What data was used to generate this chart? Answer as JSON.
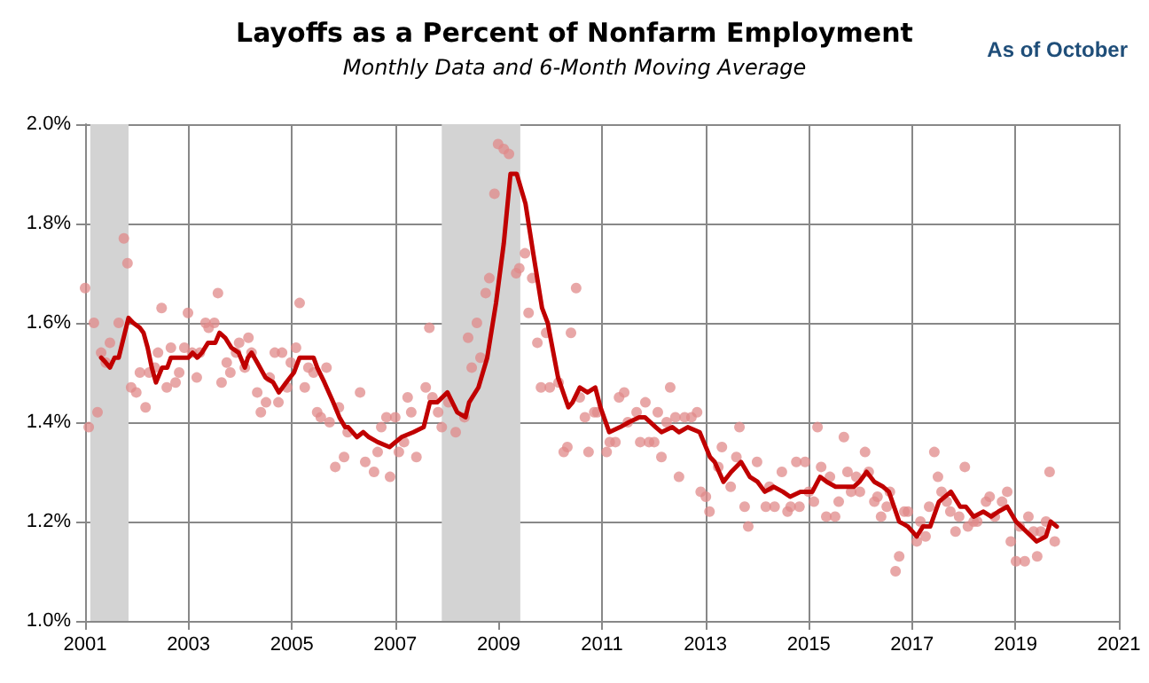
{
  "chart_data": {
    "type": "scatter",
    "title": "Layoffs as a Percent of Nonfarm Employment",
    "subtitle": "Monthly Data and 6-Month Moving Average",
    "annotations": [
      "As of October"
    ],
    "xlim": [
      2001,
      2021
    ],
    "xticks": [
      2001,
      2003,
      2005,
      2007,
      2009,
      2011,
      2013,
      2015,
      2017,
      2019,
      2021
    ],
    "ylim": [
      1.0,
      2.0
    ],
    "yticks": [
      {
        "value": 1.0,
        "label": "1.0%"
      },
      {
        "value": 1.2,
        "label": "1.2%"
      },
      {
        "value": 1.4,
        "label": "1.4%"
      },
      {
        "value": 1.6,
        "label": "1.6%"
      },
      {
        "value": 1.8,
        "label": "1.8%"
      },
      {
        "value": 2.0,
        "label": "2.0%"
      }
    ],
    "grid": true,
    "bands": [
      {
        "axis": "x",
        "from": 2001.1,
        "to": 2001.84,
        "label": null,
        "color": "#d3d3d3"
      },
      {
        "axis": "x",
        "from": 2007.9,
        "to": 2009.42,
        "label": null,
        "color": "#d3d3d3"
      }
    ],
    "series": [
      {
        "color": "#e08a8a",
        "marker": "circle",
        "x": [
          2001.0,
          2001.07,
          2001.17,
          2001.24,
          2001.31,
          2001.4,
          2001.48,
          2001.65,
          2001.75,
          2001.82,
          2001.89,
          2001.99,
          2002.06,
          2002.17,
          2002.24,
          2002.35,
          2002.41,
          2002.48,
          2002.58,
          2002.66,
          2002.75,
          2002.82,
          2002.92,
          2002.99,
          2003.07,
          2003.16,
          2003.22,
          2003.33,
          2003.39,
          2003.5,
          2003.57,
          2003.64,
          2003.74,
          2003.81,
          2003.92,
          2003.98,
          2004.09,
          2004.16,
          2004.22,
          2004.33,
          2004.4,
          2004.5,
          2004.57,
          2004.67,
          2004.74,
          2004.81,
          2004.91,
          2004.98,
          2005.08,
          2005.15,
          2005.25,
          2005.32,
          2005.42,
          2005.49,
          2005.56,
          2005.67,
          2005.73,
          2005.84,
          2005.91,
          2006.01,
          2006.08,
          2006.32,
          2006.42,
          2006.59,
          2006.66,
          2006.73,
          2006.83,
          2006.9,
          2007.0,
          2007.07,
          2007.17,
          2007.24,
          2007.31,
          2007.41,
          2007.59,
          2007.66,
          2007.72,
          2007.83,
          2007.9,
          2008.03,
          2008.17,
          2008.34,
          2008.41,
          2008.48,
          2008.58,
          2008.65,
          2008.75,
          2008.82,
          2008.92,
          2008.99,
          2009.1,
          2009.2,
          2009.34,
          2009.4,
          2009.51,
          2009.58,
          2009.65,
          2009.75,
          2009.82,
          2009.92,
          2009.99,
          2010.16,
          2010.26,
          2010.33,
          2010.4,
          2010.5,
          2010.57,
          2010.67,
          2010.74,
          2010.85,
          2010.91,
          2011.09,
          2011.15,
          2011.26,
          2011.33,
          2011.43,
          2011.5,
          2011.67,
          2011.74,
          2011.84,
          2011.91,
          2012.01,
          2012.08,
          2012.15,
          2012.25,
          2012.32,
          2012.42,
          2012.49,
          2012.6,
          2012.73,
          2012.84,
          2012.91,
          2013.01,
          2013.08,
          2013.25,
          2013.32,
          2013.49,
          2013.6,
          2013.66,
          2013.76,
          2013.83,
          2014.0,
          2014.17,
          2014.24,
          2014.34,
          2014.48,
          2014.59,
          2014.65,
          2014.76,
          2014.82,
          2014.93,
          2015.0,
          2015.1,
          2015.17,
          2015.24,
          2015.34,
          2015.41,
          2015.51,
          2015.58,
          2015.68,
          2015.75,
          2015.82,
          2015.92,
          2015.99,
          2016.09,
          2016.16,
          2016.27,
          2016.33,
          2016.4,
          2016.51,
          2016.57,
          2016.68,
          2016.75,
          2016.85,
          2016.92,
          2017.09,
          2017.16,
          2017.26,
          2017.33,
          2017.43,
          2017.5,
          2017.57,
          2017.67,
          2017.74,
          2017.84,
          2017.91,
          2018.02,
          2018.08,
          2018.19,
          2018.26,
          2018.43,
          2018.5,
          2018.6,
          2018.74,
          2018.84,
          2018.91,
          2019.01,
          2019.08,
          2019.18,
          2019.25,
          2019.35,
          2019.42,
          2019.49,
          2019.59,
          2019.66,
          2019.76
        ],
        "values": [
          1.67,
          1.39,
          1.6,
          1.42,
          1.54,
          1.52,
          1.56,
          1.6,
          1.77,
          1.72,
          1.47,
          1.46,
          1.5,
          1.43,
          1.5,
          1.51,
          1.54,
          1.63,
          1.47,
          1.55,
          1.48,
          1.5,
          1.55,
          1.62,
          1.54,
          1.49,
          1.54,
          1.6,
          1.59,
          1.6,
          1.66,
          1.48,
          1.52,
          1.5,
          1.54,
          1.56,
          1.51,
          1.57,
          1.54,
          1.46,
          1.42,
          1.44,
          1.49,
          1.54,
          1.44,
          1.54,
          1.47,
          1.52,
          1.55,
          1.64,
          1.47,
          1.51,
          1.5,
          1.42,
          1.41,
          1.51,
          1.4,
          1.31,
          1.43,
          1.33,
          1.38,
          1.46,
          1.32,
          1.3,
          1.34,
          1.39,
          1.41,
          1.29,
          1.41,
          1.34,
          1.36,
          1.45,
          1.42,
          1.33,
          1.47,
          1.59,
          1.45,
          1.42,
          1.39,
          1.44,
          1.38,
          1.41,
          1.57,
          1.51,
          1.6,
          1.53,
          1.66,
          1.69,
          1.86,
          1.96,
          1.95,
          1.94,
          1.7,
          1.71,
          1.74,
          1.62,
          1.69,
          1.56,
          1.47,
          1.58,
          1.47,
          1.48,
          1.34,
          1.35,
          1.58,
          1.67,
          1.45,
          1.41,
          1.34,
          1.42,
          1.42,
          1.34,
          1.36,
          1.36,
          1.45,
          1.46,
          1.4,
          1.42,
          1.36,
          1.44,
          1.36,
          1.36,
          1.42,
          1.33,
          1.4,
          1.47,
          1.41,
          1.29,
          1.41,
          1.41,
          1.42,
          1.26,
          1.25,
          1.22,
          1.31,
          1.35,
          1.27,
          1.33,
          1.39,
          1.23,
          1.19,
          1.32,
          1.23,
          1.27,
          1.23,
          1.3,
          1.22,
          1.23,
          1.32,
          1.23,
          1.32,
          1.26,
          1.24,
          1.39,
          1.31,
          1.21,
          1.29,
          1.21,
          1.24,
          1.37,
          1.3,
          1.26,
          1.29,
          1.26,
          1.34,
          1.3,
          1.24,
          1.25,
          1.21,
          1.23,
          1.26,
          1.1,
          1.13,
          1.22,
          1.22,
          1.16,
          1.2,
          1.17,
          1.23,
          1.34,
          1.29,
          1.26,
          1.24,
          1.22,
          1.18,
          1.21,
          1.31,
          1.19,
          1.2,
          1.2,
          1.24,
          1.25,
          1.21,
          1.24,
          1.26,
          1.16,
          1.12,
          1.19,
          1.12,
          1.21,
          1.18,
          1.13,
          1.18,
          1.2,
          1.3,
          1.16
        ]
      },
      {
        "type": "line",
        "color": "#c00000",
        "marker": "none",
        "line_style": "solid",
        "x": [
          2001.31,
          2001.4,
          2001.48,
          2001.57,
          2001.65,
          2001.84,
          2001.93,
          2002.06,
          2002.13,
          2002.21,
          2002.29,
          2002.37,
          2002.49,
          2002.59,
          2002.66,
          2002.89,
          2003.0,
          2003.08,
          2003.17,
          2003.26,
          2003.38,
          2003.52,
          2003.6,
          2003.71,
          2003.83,
          2003.97,
          2004.09,
          2004.15,
          2004.22,
          2004.33,
          2004.49,
          2004.64,
          2004.75,
          2004.89,
          2005.04,
          2005.15,
          2005.29,
          2005.42,
          2005.49,
          2005.63,
          2005.8,
          2005.92,
          2006.03,
          2006.09,
          2006.26,
          2006.38,
          2006.49,
          2006.66,
          2006.89,
          2007.12,
          2007.35,
          2007.55,
          2007.67,
          2007.81,
          2008.01,
          2008.2,
          2008.36,
          2008.43,
          2008.61,
          2008.78,
          2008.95,
          2009.1,
          2009.23,
          2009.35,
          2009.52,
          2009.67,
          2009.84,
          2009.95,
          2010.15,
          2010.35,
          2010.43,
          2010.57,
          2010.72,
          2010.87,
          2010.97,
          2011.14,
          2011.35,
          2011.52,
          2011.72,
          2011.83,
          2012.04,
          2012.15,
          2012.36,
          2012.49,
          2012.66,
          2012.89,
          2012.97,
          2013.09,
          2013.18,
          2013.35,
          2013.5,
          2013.69,
          2013.86,
          2014.01,
          2014.15,
          2014.32,
          2014.5,
          2014.64,
          2014.84,
          2014.95,
          2015.07,
          2015.22,
          2015.35,
          2015.52,
          2015.7,
          2015.87,
          2015.98,
          2016.12,
          2016.27,
          2016.44,
          2016.55,
          2016.75,
          2016.92,
          2017.09,
          2017.21,
          2017.35,
          2017.52,
          2017.75,
          2017.93,
          2018.04,
          2018.19,
          2018.38,
          2018.53,
          2018.67,
          2018.84,
          2019.01,
          2019.21,
          2019.41,
          2019.59,
          2019.68,
          2019.8
        ],
        "values": [
          1.53,
          1.52,
          1.51,
          1.53,
          1.53,
          1.61,
          1.6,
          1.59,
          1.58,
          1.55,
          1.51,
          1.48,
          1.51,
          1.51,
          1.53,
          1.53,
          1.53,
          1.54,
          1.53,
          1.54,
          1.56,
          1.56,
          1.58,
          1.57,
          1.55,
          1.54,
          1.51,
          1.53,
          1.54,
          1.52,
          1.49,
          1.48,
          1.46,
          1.48,
          1.5,
          1.53,
          1.53,
          1.53,
          1.51,
          1.48,
          1.44,
          1.41,
          1.39,
          1.39,
          1.37,
          1.38,
          1.37,
          1.36,
          1.35,
          1.37,
          1.38,
          1.39,
          1.44,
          1.44,
          1.46,
          1.42,
          1.41,
          1.44,
          1.47,
          1.53,
          1.64,
          1.76,
          1.9,
          1.9,
          1.84,
          1.74,
          1.63,
          1.6,
          1.49,
          1.43,
          1.44,
          1.47,
          1.46,
          1.47,
          1.43,
          1.38,
          1.39,
          1.4,
          1.41,
          1.41,
          1.39,
          1.38,
          1.39,
          1.38,
          1.39,
          1.38,
          1.36,
          1.33,
          1.32,
          1.28,
          1.3,
          1.32,
          1.29,
          1.28,
          1.26,
          1.27,
          1.26,
          1.25,
          1.26,
          1.26,
          1.26,
          1.29,
          1.28,
          1.27,
          1.27,
          1.27,
          1.28,
          1.3,
          1.28,
          1.27,
          1.26,
          1.2,
          1.19,
          1.17,
          1.19,
          1.19,
          1.24,
          1.26,
          1.23,
          1.23,
          1.21,
          1.22,
          1.21,
          1.22,
          1.23,
          1.2,
          1.18,
          1.16,
          1.17,
          1.2,
          1.19
        ]
      }
    ]
  }
}
